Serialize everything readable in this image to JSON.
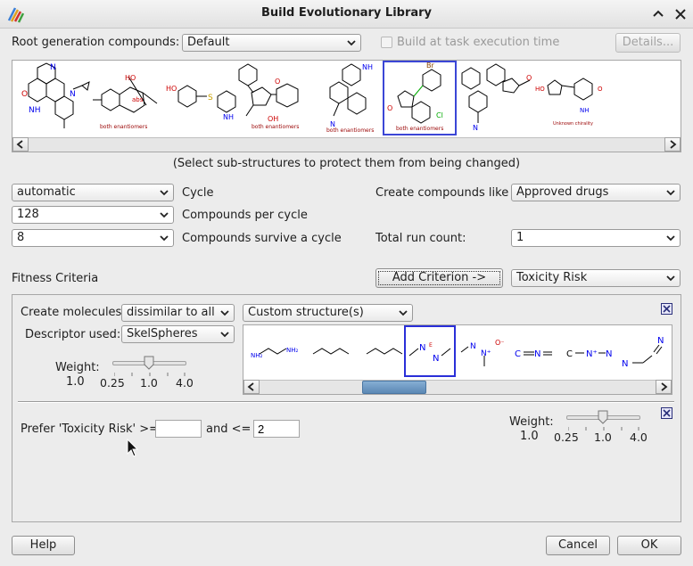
{
  "window": {
    "title": "Build Evolutionary Library"
  },
  "root": {
    "label": "Root generation compounds:",
    "combo_value": "Default",
    "build_at_exec_label": "Build at task execution time",
    "details_label": "Details...",
    "hint": "(Select sub-structures to protect them from being changed)"
  },
  "params": {
    "cycle_value": "automatic",
    "cycle_label": "Cycle",
    "per_cycle_value": "128",
    "per_cycle_label": "Compounds per cycle",
    "survive_value": "8",
    "survive_label": "Compounds survive a cycle",
    "create_like_label": "Create compounds like",
    "create_like_value": "Approved drugs",
    "total_run_label": "Total run count:",
    "total_run_value": "1"
  },
  "fitness": {
    "label": "Fitness Criteria",
    "add_button": "Add Criterion ->",
    "criterion_value": "Toxicity Risk"
  },
  "criterion1": {
    "create_label": "Create molecules",
    "mode_value": "dissimilar to all",
    "structure_value": "Custom structure(s)",
    "descriptor_label": "Descriptor used:",
    "descriptor_value": "SkelSpheres",
    "weight_label": "Weight:",
    "weight_value": "1.0",
    "tick_min": "0.25",
    "tick_mid": "1.0",
    "tick_max": "4.0"
  },
  "criterion2": {
    "prefer_label": "Prefer 'Toxicity Risk' >=",
    "min_value": "",
    "and_label": "and <=",
    "max_value": "2",
    "weight_label": "Weight:",
    "weight_value": "1.0",
    "tick_min": "0.25",
    "tick_mid": "1.0",
    "tick_max": "4.0"
  },
  "footer": {
    "help": "Help",
    "cancel": "Cancel",
    "ok": "OK"
  },
  "molecules": {
    "tags": [
      "both enantiomers",
      "both enantiomers",
      "both enantiomers",
      "both enantiomers",
      "Unknown chirality"
    ],
    "frag_labels": [
      "NH₂",
      "NH₂",
      "N",
      "E",
      "O⁻",
      "N⁺",
      "N",
      "C",
      "N",
      "N"
    ]
  },
  "colors": {
    "accent": "#3b46d6",
    "selection": "#2a2fd8",
    "bond": "#000000",
    "hetero_red": "#cc0000",
    "hetero_blue": "#0000ee"
  },
  "icons": [
    "app-icon",
    "minimize-icon",
    "close-icon",
    "checkbox-icon",
    "chevron-down-icon",
    "scroll-left-icon",
    "scroll-right-icon",
    "remove-criterion-icon",
    "mouse-cursor-icon"
  ]
}
